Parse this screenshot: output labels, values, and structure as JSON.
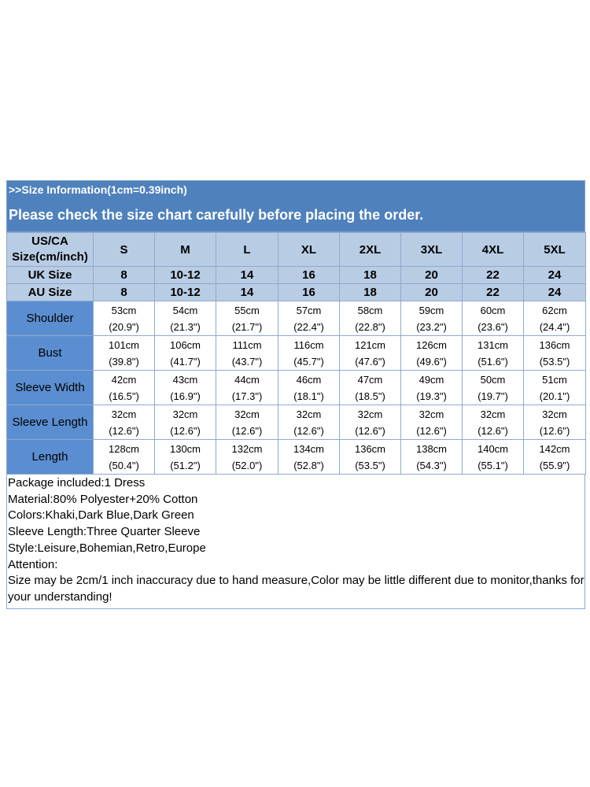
{
  "header": {
    "info": ">>Size Information(1cm=0.39inch)",
    "notice": "Please check the size chart carefully before placing the order."
  },
  "table": {
    "corner": [
      "US/CA",
      "Size(cm/inch)"
    ],
    "sizes": [
      "S",
      "M",
      "L",
      "XL",
      "2XL",
      "3XL",
      "4XL",
      "5XL"
    ],
    "bands": [
      {
        "label": "UK Size",
        "values": [
          "8",
          "10-12",
          "14",
          "16",
          "18",
          "20",
          "22",
          "24"
        ]
      },
      {
        "label": "AU Size",
        "values": [
          "8",
          "10-12",
          "14",
          "16",
          "18",
          "20",
          "22",
          "24"
        ]
      }
    ],
    "rows": [
      {
        "label": "Shoulder",
        "cm": [
          "53cm",
          "54cm",
          "55cm",
          "57cm",
          "58cm",
          "59cm",
          "60cm",
          "62cm"
        ],
        "inch": [
          "(20.9\")",
          "(21.3\")",
          "(21.7\")",
          "(22.4\")",
          "(22.8\")",
          "(23.2\")",
          "(23.6\")",
          "(24.4\")"
        ]
      },
      {
        "label": "Bust",
        "cm": [
          "101cm",
          "106cm",
          "111cm",
          "116cm",
          "121cm",
          "126cm",
          "131cm",
          "136cm"
        ],
        "inch": [
          "(39.8\")",
          "(41.7\")",
          "(43.7\")",
          "(45.7\")",
          "(47.6\")",
          "(49.6\")",
          "(51.6\")",
          "(53.5\")"
        ]
      },
      {
        "label": "Sleeve Width",
        "cm": [
          "42cm",
          "43cm",
          "44cm",
          "46cm",
          "47cm",
          "49cm",
          "50cm",
          "51cm"
        ],
        "inch": [
          "(16.5\")",
          "(16.9\")",
          "(17.3\")",
          "(18.1\")",
          "(18.5\")",
          "(19.3\")",
          "(19.7\")",
          "(20.1\")"
        ]
      },
      {
        "label": "Sleeve Length",
        "cm": [
          "32cm",
          "32cm",
          "32cm",
          "32cm",
          "32cm",
          "32cm",
          "32cm",
          "32cm"
        ],
        "inch": [
          "(12.6\")",
          "(12.6\")",
          "(12.6\")",
          "(12.6\")",
          "(12.6\")",
          "(12.6\")",
          "(12.6\")",
          "(12.6\")"
        ]
      },
      {
        "label": "Length",
        "cm": [
          "128cm",
          "130cm",
          "132cm",
          "134cm",
          "136cm",
          "138cm",
          "140cm",
          "142cm"
        ],
        "inch": [
          "(50.4\")",
          "(51.2\")",
          "(52.0\")",
          "(52.8\")",
          "(53.5\")",
          "(54.3\")",
          "(55.1\")",
          "(55.9\")"
        ]
      }
    ]
  },
  "notes": [
    "Package included:1 Dress",
    "Material:80% Polyester+20% Cotton",
    "Colors:Khaki,Dark Blue,Dark Green",
    "Sleeve Length:Three Quarter Sleeve",
    "Style:Leisure,Bohemian,Retro,Europe",
    "Attention:",
    "Size may be 2cm/1 inch inaccuracy due to hand measure,Color may be little different due to monitor,thanks for your understanding!"
  ],
  "colors": {
    "header_bg": "#4f81bd",
    "band_bg": "#b8cce4",
    "row_label_bg": "#5b8ed0",
    "border": "#8fa9cf"
  }
}
